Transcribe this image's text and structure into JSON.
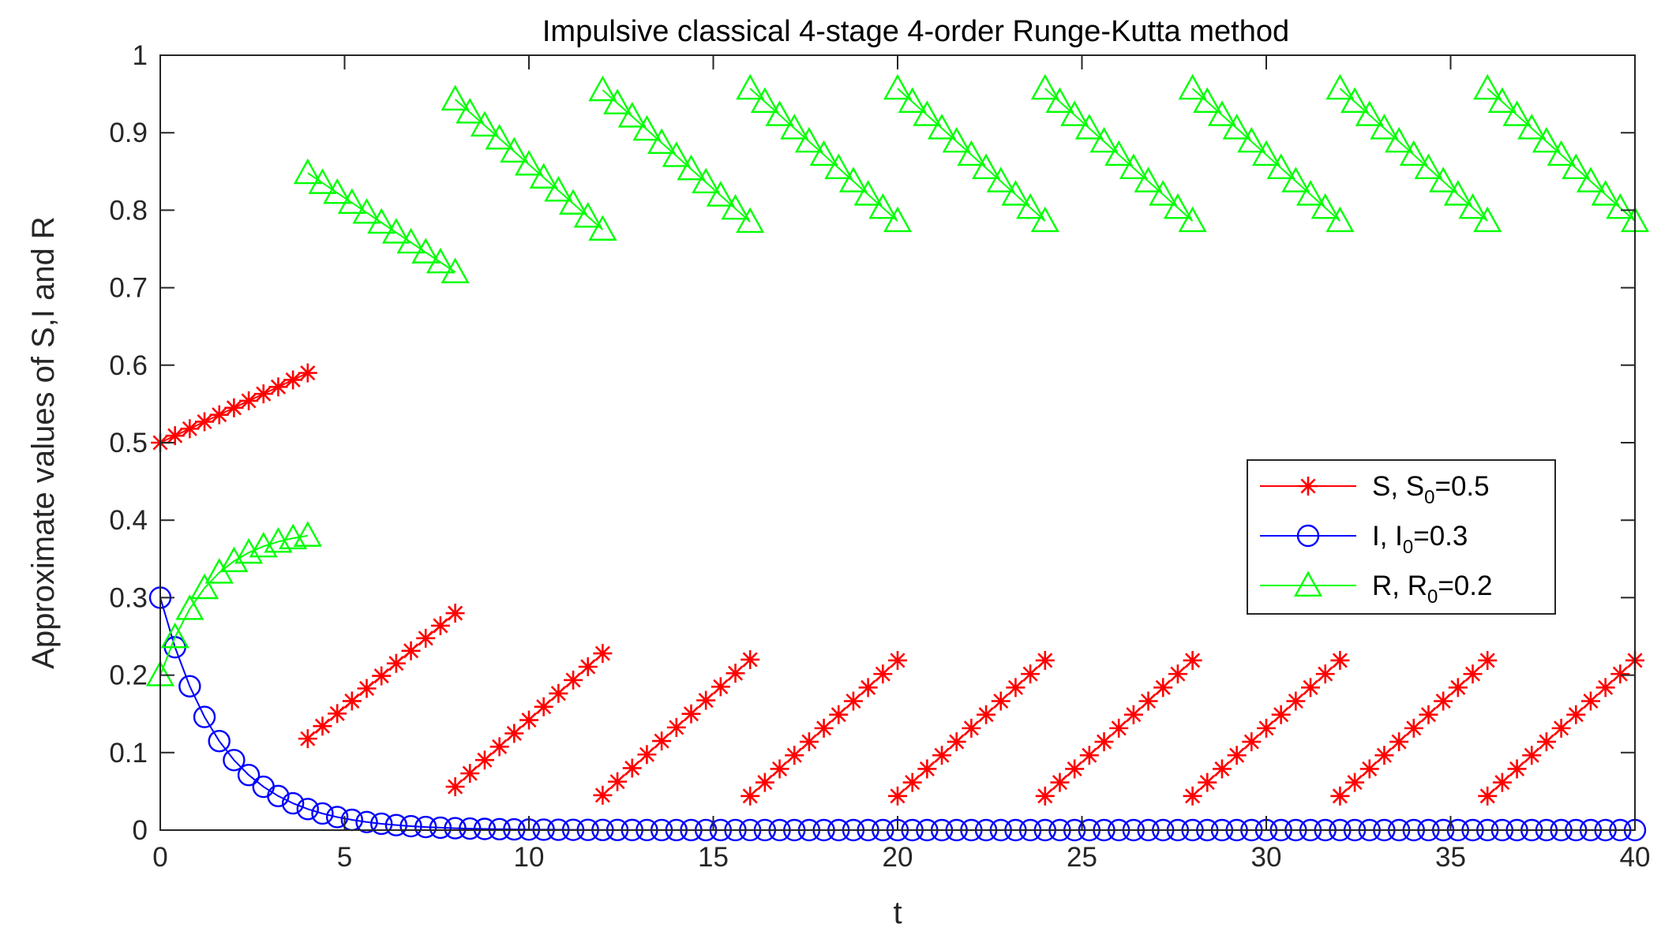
{
  "chart_data": {
    "type": "scatter",
    "title": "Impulsive classical 4-stage 4-order Runge-Kutta method",
    "xlabel": "t",
    "ylabel": "Approximate values of S,I and R",
    "xlim": [
      0,
      40
    ],
    "ylim": [
      0,
      1
    ],
    "xticks": [
      0,
      5,
      10,
      15,
      20,
      25,
      30,
      35,
      40
    ],
    "yticks": [
      0,
      0.1,
      0.2,
      0.3,
      0.4,
      0.5,
      0.6,
      0.7,
      0.8,
      0.9,
      1
    ],
    "xtick_labels": [
      "0",
      "5",
      "10",
      "15",
      "20",
      "25",
      "30",
      "35",
      "40"
    ],
    "ytick_labels": [
      "0",
      "0.1",
      "0.2",
      "0.3",
      "0.4",
      "0.5",
      "0.6",
      "0.7",
      "0.8",
      "0.9",
      "1"
    ],
    "grid": false,
    "legend_position": "right",
    "series": [
      {
        "key": "S",
        "label_main": "S, S",
        "label_sub": "0",
        "label_tail": "=0.5",
        "color": "#ff0000",
        "marker": "asterisk",
        "segments": [
          {
            "x_start": 0,
            "x_end": 4,
            "y_start": 0.5,
            "y_end": 0.59
          },
          {
            "x_start": 4,
            "x_end": 8,
            "y_start": 0.118,
            "y_end": 0.28
          },
          {
            "x_start": 8,
            "x_end": 12,
            "y_start": 0.056,
            "y_end": 0.228
          },
          {
            "x_start": 12,
            "x_end": 16,
            "y_start": 0.045,
            "y_end": 0.22
          },
          {
            "x_start": 16,
            "x_end": 20,
            "y_start": 0.044,
            "y_end": 0.219
          },
          {
            "x_start": 20,
            "x_end": 24,
            "y_start": 0.044,
            "y_end": 0.219
          },
          {
            "x_start": 24,
            "x_end": 28,
            "y_start": 0.044,
            "y_end": 0.219
          },
          {
            "x_start": 28,
            "x_end": 32,
            "y_start": 0.044,
            "y_end": 0.219
          },
          {
            "x_start": 32,
            "x_end": 36,
            "y_start": 0.044,
            "y_end": 0.219
          },
          {
            "x_start": 36,
            "x_end": 40,
            "y_start": 0.044,
            "y_end": 0.219
          }
        ]
      },
      {
        "key": "I",
        "label_main": "I,  I",
        "label_sub": "0",
        "label_tail": "=0.3",
        "color": "#0000ff",
        "marker": "circle",
        "initial": 0.3,
        "decay_rate": 0.6,
        "x_start": 0,
        "x_end": 40
      },
      {
        "key": "R",
        "label_main": "R, R",
        "label_sub": "0",
        "label_tail": "=0.2",
        "color": "#00ff00",
        "marker": "triangle",
        "segments": [
          {
            "x_start": 0,
            "x_end": 4,
            "y_start": 0.2,
            "y_end": 0.38,
            "shape": "saturating"
          },
          {
            "x_start": 4,
            "x_end": 8,
            "y_start": 0.848,
            "y_end": 0.72
          },
          {
            "x_start": 8,
            "x_end": 12,
            "y_start": 0.943,
            "y_end": 0.775
          },
          {
            "x_start": 12,
            "x_end": 16,
            "y_start": 0.955,
            "y_end": 0.785
          },
          {
            "x_start": 16,
            "x_end": 20,
            "y_start": 0.957,
            "y_end": 0.786
          },
          {
            "x_start": 20,
            "x_end": 24,
            "y_start": 0.957,
            "y_end": 0.786
          },
          {
            "x_start": 24,
            "x_end": 28,
            "y_start": 0.957,
            "y_end": 0.786
          },
          {
            "x_start": 28,
            "x_end": 32,
            "y_start": 0.957,
            "y_end": 0.786
          },
          {
            "x_start": 32,
            "x_end": 36,
            "y_start": 0.957,
            "y_end": 0.786
          },
          {
            "x_start": 36,
            "x_end": 40,
            "y_start": 0.957,
            "y_end": 0.786
          }
        ]
      }
    ],
    "sample_step": 0.4
  }
}
